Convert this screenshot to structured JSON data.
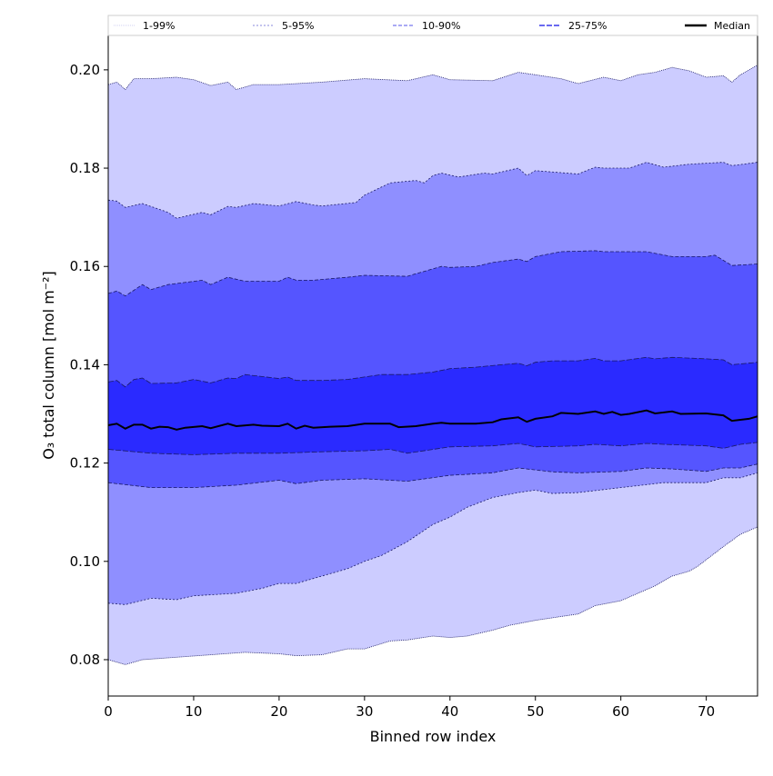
{
  "chart_data": {
    "type": "area",
    "title": "",
    "xlabel": "Binned row index",
    "ylabel": "O₃ total column [mol m⁻²]",
    "xlim": [
      0,
      76
    ],
    "ylim": [
      0.0726,
      0.207
    ],
    "xticks": [
      0,
      10,
      20,
      30,
      40,
      50,
      60,
      70
    ],
    "yticks": [
      0.08,
      0.1,
      0.12,
      0.14,
      0.16,
      0.18,
      0.2
    ],
    "ytick_labels": [
      "0.08",
      "0.10",
      "0.12",
      "0.14",
      "0.16",
      "0.18",
      "0.20"
    ],
    "grid": false,
    "legend_placement": "top (above axes, single row)",
    "bands": [
      {
        "name": "1-99%",
        "color": "#ccccff",
        "lower": {
          "x": [
            0,
            2,
            4,
            8,
            12,
            16,
            20,
            22,
            25,
            28,
            30,
            33,
            35,
            38,
            40,
            42,
            45,
            47,
            50,
            55,
            57,
            60,
            62,
            64,
            66,
            68,
            69,
            72,
            74,
            76
          ],
          "y": [
            0.08,
            0.079,
            0.08,
            0.0805,
            0.081,
            0.0815,
            0.0812,
            0.0808,
            0.081,
            0.0822,
            0.0822,
            0.0838,
            0.084,
            0.0848,
            0.0845,
            0.0848,
            0.086,
            0.087,
            0.088,
            0.0893,
            0.091,
            0.092,
            0.0935,
            0.095,
            0.097,
            0.098,
            0.099,
            0.103,
            0.1055,
            0.107
          ]
        },
        "upper": {
          "x": [
            0,
            1,
            2,
            3,
            5,
            8,
            10,
            12,
            14,
            15,
            17,
            20,
            25,
            30,
            35,
            38,
            40,
            45,
            48,
            50,
            53,
            55,
            58,
            60,
            62,
            64,
            66,
            68,
            70,
            72,
            73,
            74,
            76
          ],
          "y": [
            0.197,
            0.1975,
            0.196,
            0.1982,
            0.1982,
            0.1985,
            0.198,
            0.1968,
            0.1975,
            0.196,
            0.197,
            0.197,
            0.1975,
            0.1982,
            0.1978,
            0.199,
            0.198,
            0.1978,
            0.1995,
            0.199,
            0.1982,
            0.1972,
            0.1985,
            0.1978,
            0.199,
            0.1995,
            0.2005,
            0.1998,
            0.1985,
            0.1988,
            0.1975,
            0.199,
            0.201
          ]
        }
      },
      {
        "name": "5-95%",
        "color": "#8f8fff",
        "lower": {
          "x": [
            0,
            2,
            5,
            8,
            10,
            15,
            18,
            20,
            22,
            25,
            28,
            30,
            32,
            35,
            38,
            40,
            42,
            45,
            48,
            50,
            52,
            55,
            60,
            65,
            70,
            72,
            74,
            76
          ],
          "y": [
            0.0915,
            0.0912,
            0.0925,
            0.0922,
            0.093,
            0.0935,
            0.0945,
            0.0955,
            0.0955,
            0.097,
            0.0985,
            0.1,
            0.1012,
            0.104,
            0.1075,
            0.109,
            0.111,
            0.113,
            0.114,
            0.1145,
            0.1138,
            0.114,
            0.115,
            0.116,
            0.116,
            0.117,
            0.117,
            0.118
          ]
        },
        "upper": {
          "x": [
            0,
            1,
            2,
            4,
            7,
            8,
            11,
            12,
            14,
            15,
            17,
            20,
            22,
            24,
            25,
            29,
            30,
            33,
            36,
            37,
            38,
            39,
            41,
            44,
            45,
            48,
            49,
            50,
            55,
            57,
            58,
            61,
            63,
            65,
            68,
            72,
            73,
            76
          ],
          "y": [
            0.1735,
            0.1733,
            0.172,
            0.1728,
            0.171,
            0.1698,
            0.171,
            0.1705,
            0.1722,
            0.172,
            0.1728,
            0.1723,
            0.1732,
            0.1725,
            0.1723,
            0.173,
            0.1745,
            0.177,
            0.1775,
            0.177,
            0.1785,
            0.179,
            0.1782,
            0.179,
            0.1788,
            0.18,
            0.1785,
            0.1795,
            0.1788,
            0.1802,
            0.18,
            0.18,
            0.1812,
            0.1802,
            0.1808,
            0.1812,
            0.1805,
            0.1812
          ]
        }
      },
      {
        "name": "10-90%",
        "color": "#5555ff",
        "lower": {
          "x": [
            0,
            5,
            10,
            15,
            20,
            22,
            25,
            30,
            35,
            40,
            45,
            48,
            52,
            55,
            60,
            63,
            66,
            70,
            72,
            74,
            76
          ],
          "y": [
            0.116,
            0.115,
            0.115,
            0.1155,
            0.1165,
            0.1158,
            0.1165,
            0.1168,
            0.1163,
            0.1175,
            0.118,
            0.119,
            0.1182,
            0.118,
            0.1183,
            0.119,
            0.1188,
            0.1183,
            0.119,
            0.119,
            0.1198
          ]
        },
        "upper": {
          "x": [
            0,
            1,
            2,
            4,
            5,
            7,
            11,
            12,
            14,
            16,
            20,
            21,
            22,
            24,
            28,
            30,
            35,
            36,
            39,
            40,
            43,
            45,
            48,
            49,
            50,
            53,
            57,
            58,
            60,
            63,
            66,
            70,
            71,
            73,
            76
          ],
          "y": [
            0.1545,
            0.155,
            0.154,
            0.1563,
            0.1553,
            0.1563,
            0.1572,
            0.1563,
            0.1578,
            0.157,
            0.157,
            0.1578,
            0.1572,
            0.1572,
            0.1578,
            0.1582,
            0.158,
            0.1585,
            0.16,
            0.1598,
            0.16,
            0.1608,
            0.1615,
            0.161,
            0.162,
            0.163,
            0.1632,
            0.163,
            0.163,
            0.163,
            0.162,
            0.162,
            0.1623,
            0.1602,
            0.1605
          ]
        }
      },
      {
        "name": "25-75%",
        "color": "#2a2aff",
        "lower": {
          "x": [
            0,
            5,
            10,
            15,
            20,
            25,
            30,
            33,
            35,
            40,
            45,
            48,
            50,
            55,
            57,
            60,
            63,
            65,
            70,
            72,
            74,
            76
          ],
          "y": [
            0.1228,
            0.122,
            0.1217,
            0.122,
            0.122,
            0.1223,
            0.1225,
            0.1228,
            0.122,
            0.1233,
            0.1235,
            0.124,
            0.1233,
            0.1235,
            0.1238,
            0.1235,
            0.124,
            0.1238,
            0.1235,
            0.123,
            0.1238,
            0.1242
          ]
        },
        "upper": {
          "x": [
            0,
            1,
            2,
            3,
            4,
            5,
            8,
            10,
            12,
            14,
            15,
            16,
            20,
            21,
            22,
            25,
            28,
            30,
            32,
            35,
            38,
            40,
            43,
            46,
            48,
            49,
            50,
            52,
            55,
            57,
            58,
            60,
            63,
            64,
            66,
            70,
            72,
            73,
            76
          ],
          "y": [
            0.1365,
            0.1368,
            0.1355,
            0.137,
            0.1373,
            0.1362,
            0.1363,
            0.137,
            0.1363,
            0.1373,
            0.1372,
            0.138,
            0.1372,
            0.1375,
            0.1368,
            0.1368,
            0.137,
            0.1375,
            0.138,
            0.138,
            0.1385,
            0.1392,
            0.1395,
            0.14,
            0.1403,
            0.1398,
            0.1405,
            0.1408,
            0.1408,
            0.1413,
            0.1408,
            0.1408,
            0.1415,
            0.1412,
            0.1415,
            0.1412,
            0.141,
            0.14,
            0.1405
          ]
        }
      }
    ],
    "median": {
      "name": "Median",
      "color": "#000000",
      "x": [
        0,
        1,
        2,
        3,
        4,
        5,
        6,
        7,
        8,
        9,
        11,
        12,
        14,
        15,
        17,
        18,
        20,
        21,
        22,
        23,
        24,
        26,
        28,
        30,
        33,
        34,
        36,
        38,
        39,
        40,
        43,
        45,
        46,
        48,
        49,
        50,
        52,
        53,
        55,
        57,
        58,
        59,
        60,
        61,
        63,
        64,
        66,
        67,
        70,
        72,
        73,
        75,
        76
      ],
      "y": [
        0.1277,
        0.128,
        0.127,
        0.1278,
        0.1278,
        0.127,
        0.1274,
        0.1273,
        0.1268,
        0.1272,
        0.1275,
        0.1271,
        0.128,
        0.1275,
        0.1278,
        0.1276,
        0.1275,
        0.128,
        0.127,
        0.1276,
        0.1272,
        0.1274,
        0.1275,
        0.128,
        0.128,
        0.1273,
        0.1275,
        0.128,
        0.1282,
        0.128,
        0.128,
        0.1283,
        0.1289,
        0.1293,
        0.1284,
        0.129,
        0.1295,
        0.1302,
        0.13,
        0.1305,
        0.13,
        0.1304,
        0.1298,
        0.13,
        0.1307,
        0.1301,
        0.1305,
        0.13,
        0.1301,
        0.1297,
        0.1286,
        0.129,
        0.1295
      ]
    }
  }
}
